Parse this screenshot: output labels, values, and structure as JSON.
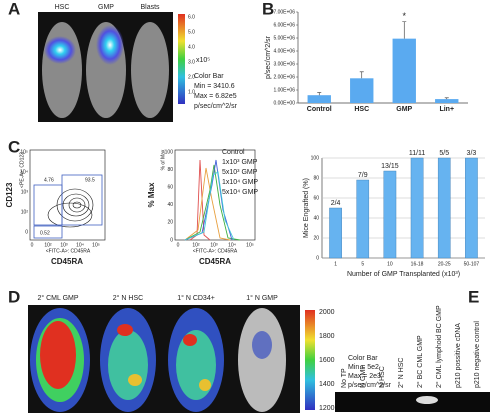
{
  "panel_letters": [
    "A",
    "B",
    "C",
    "D",
    "E"
  ],
  "panel_a": {
    "labels": [
      "HSC",
      "GMP",
      "Blasts"
    ],
    "colorbar_ticks": [
      "6.0",
      "5.0",
      "4.0",
      "3.0",
      "2.0",
      "1.0"
    ],
    "colorbar_unit": "x10⁵",
    "notes": [
      "Color Bar",
      "Min = 3410.6",
      "Max = 6.82e5",
      "p/sec/cm^2/sr"
    ]
  },
  "flow_plot": {
    "xlabel": "CD45RA",
    "ylabel": "CD123",
    "gates": [
      "4.76",
      "93.5",
      "0.52"
    ],
    "axis_ticks": [
      "10⁵",
      "10⁴",
      "10³",
      "10²",
      "0",
      "0",
      "10²",
      "10³",
      "10⁴",
      "10⁵"
    ],
    "inner_xlabel": "<FITC-A>: CD45RA",
    "inner_ylabel": "<PE-A>: CD123"
  },
  "histogram": {
    "xlabel": "CD45RA",
    "ylabel": "% Max",
    "inner_ylabel": "% of Max",
    "inner_xlabel": "<FITC-A>: CD45RA",
    "yticks": [
      "100",
      "80",
      "60",
      "40",
      "20",
      "0"
    ],
    "xticks": [
      "0",
      "10²",
      "10³",
      "10⁴",
      "10⁵"
    ],
    "legend": [
      {
        "name": "Control",
        "color": "#e05050"
      },
      {
        "name": "1x10³ GMP",
        "color": "#40c8d8"
      },
      {
        "name": "5x10³ GMP",
        "color": "#e8a040"
      },
      {
        "name": "1x10⁴ GMP",
        "color": "#40b040"
      },
      {
        "name": "5x10⁴ GMP",
        "color": "#4060d8"
      }
    ]
  },
  "panel_d": {
    "labels": [
      "2° CML GMP",
      "2° N HSC",
      "1° N CD34+",
      "1° N GMP"
    ],
    "colorbar_ticks": [
      "2000",
      "1800",
      "1600",
      "1400",
      "1200"
    ],
    "notes": [
      "Color Bar",
      "Min = 5e2",
      "Max = 2e3",
      "p/sec/cm^2/sr"
    ]
  },
  "panel_e": {
    "lanes": [
      "No TP",
      "N GMP",
      "N HSC",
      "2° N HSC",
      "2° BC CML GMP",
      "2° CML lymphoid BC GMP",
      "p210 possitive cDNA",
      "p210 negative control"
    ]
  },
  "chart_data": [
    {
      "type": "bar",
      "ylabel": "p/sec/cm^2/sr",
      "categories": [
        "Control",
        "HSC",
        "GMP",
        "Lin+"
      ],
      "values": [
        600000,
        1900000,
        4950000,
        300000
      ],
      "errors": [
        200000,
        500000,
        1300000,
        100000
      ],
      "color": "#5aaaf0",
      "annotation": "*",
      "ylim": [
        0,
        7000000
      ],
      "yticks": [
        {
          "value": 0,
          "label": "0.00E+00"
        },
        {
          "value": 1000000,
          "label": "1.00E+06"
        },
        {
          "value": 2000000,
          "label": "2.00E+06"
        },
        {
          "value": 3000000,
          "label": "3.00E+06"
        },
        {
          "value": 4000000,
          "label": "4.00E+06"
        },
        {
          "value": 5000000,
          "label": "5.00E+06"
        },
        {
          "value": 6000000,
          "label": "6.00E+06"
        },
        {
          "value": 7000000,
          "label": "7.00E+06"
        }
      ],
      "grid": false
    },
    {
      "type": "bar",
      "ylabel": "Mice Engrafted (%)",
      "xlabel": "Number of GMP Transplanted (x10³)",
      "categories": [
        "1",
        "5",
        "10",
        "16-18",
        "20-25",
        "50-107"
      ],
      "values": [
        50,
        78,
        87,
        100,
        100,
        100
      ],
      "value_labels": [
        "2/4",
        "7/9",
        "13/15",
        "11/11",
        "5/5",
        "3/3"
      ],
      "color": "#66b3f0",
      "ylim": [
        0,
        100
      ],
      "yticks": [
        0,
        20,
        40,
        60,
        80,
        100
      ],
      "grid": true
    }
  ]
}
